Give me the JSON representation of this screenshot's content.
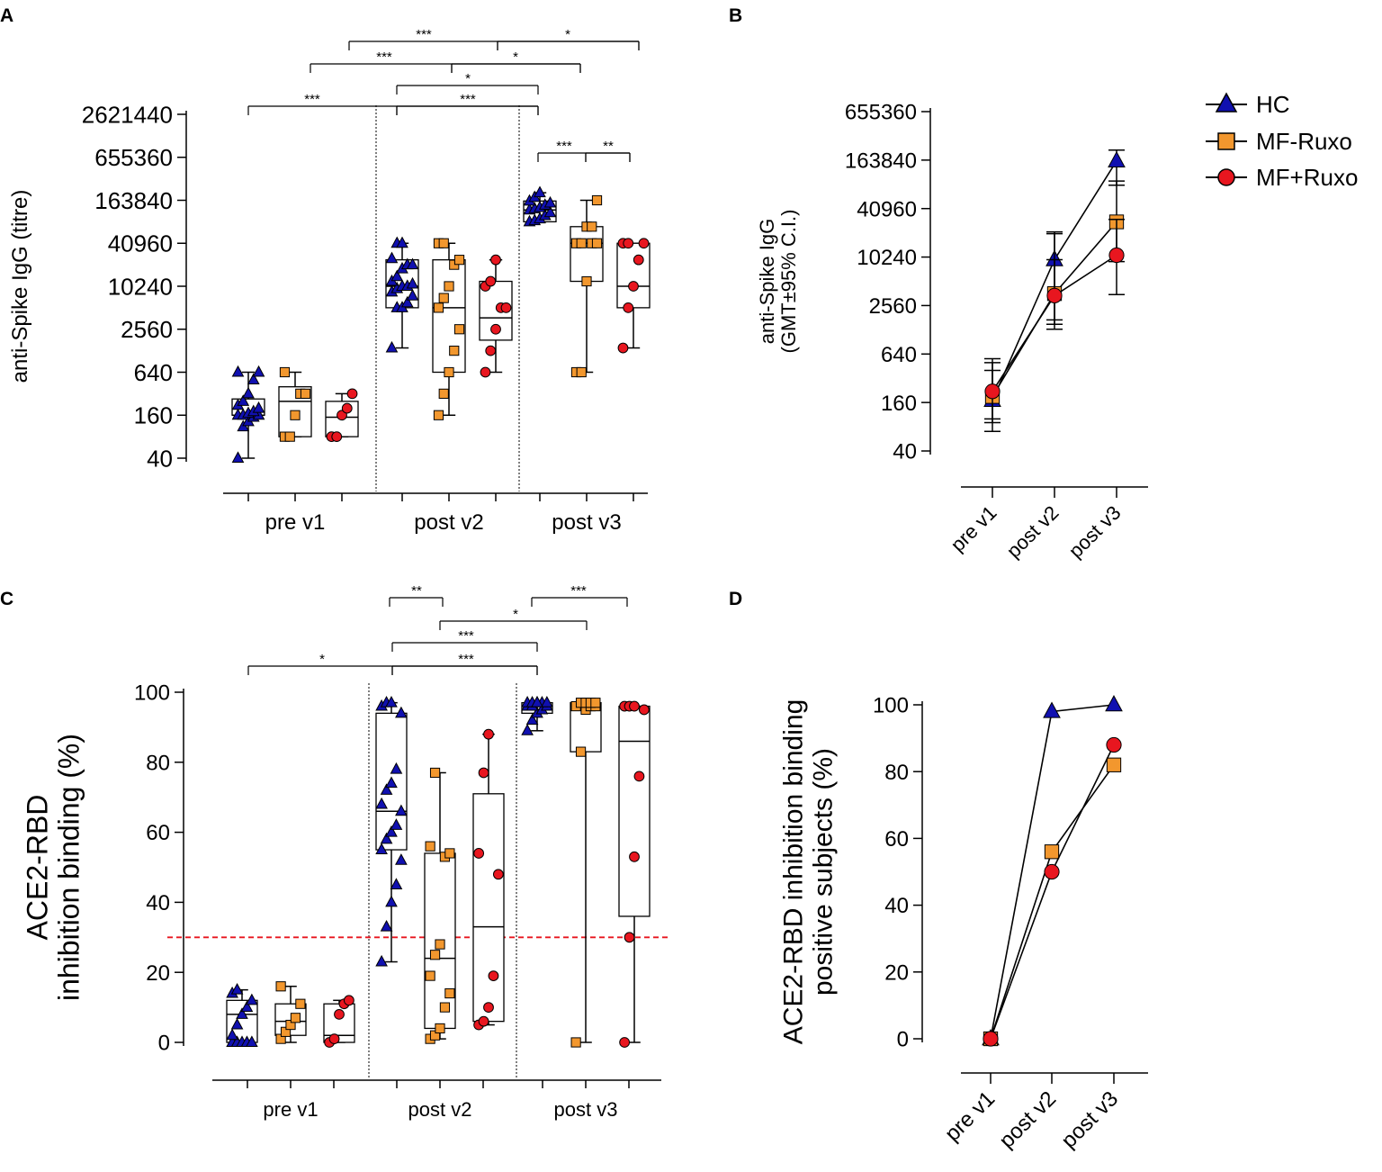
{
  "colors": {
    "hc": "#1010b0",
    "mf_minus": "#f2972e",
    "mf_plus": "#e8161f",
    "threshold": "#e8161f",
    "axis": "#000000"
  },
  "panels": {
    "a": "A",
    "b": "B",
    "c": "C",
    "d": "D"
  },
  "legend": {
    "items": [
      {
        "label": "HC",
        "marker": "triangle",
        "color": "#1010b0"
      },
      {
        "label": "MF-Ruxo",
        "marker": "square",
        "color": "#f2972e"
      },
      {
        "label": "MF+Ruxo",
        "marker": "circle",
        "color": "#e8161f"
      }
    ]
  },
  "chart_data": [
    {
      "id": "A",
      "type": "box",
      "scale": "log",
      "ylabel": "anti-Spike IgG (titre)",
      "ylim": [
        40,
        2621440
      ],
      "yticks": [
        40,
        160,
        640,
        2560,
        10240,
        40960,
        163840,
        655360,
        2621440
      ],
      "ytick_labels": [
        "40",
        "160",
        "640",
        "2560",
        "10240",
        "40960",
        "163840",
        "655360",
        "2621440"
      ],
      "categories": [
        "pre v1",
        "post v2",
        "post v3"
      ],
      "boxes": [
        {
          "cat": 0,
          "group": "HC",
          "whisker": [
            40,
            640
          ],
          "box": [
            160,
            270
          ],
          "median": 160,
          "points": [
            40,
            110,
            130,
            150,
            160,
            160,
            160,
            170,
            180,
            200,
            220,
            250,
            320,
            500,
            640,
            640
          ]
        },
        {
          "cat": 0,
          "group": "MF-Ruxo",
          "whisker": [
            80,
            640
          ],
          "box": [
            80,
            400
          ],
          "median": 250,
          "points": [
            80,
            80,
            160,
            320,
            320,
            640
          ]
        },
        {
          "cat": 0,
          "group": "MF+Ruxo",
          "whisker": [
            80,
            320
          ],
          "box": [
            80,
            250
          ],
          "median": 150,
          "points": [
            80,
            80,
            160,
            200,
            320
          ]
        },
        {
          "cat": 1,
          "group": "HC",
          "whisker": [
            1400,
            40960
          ],
          "box": [
            5120,
            24000
          ],
          "median": 10240,
          "points": [
            1400,
            5120,
            5120,
            6000,
            7500,
            8500,
            9500,
            10240,
            10240,
            11000,
            12000,
            14000,
            18000,
            20480,
            20480,
            25000,
            40960,
            40960
          ]
        },
        {
          "cat": 1,
          "group": "MF-Ruxo",
          "whisker": [
            160,
            40960
          ],
          "box": [
            640,
            24000
          ],
          "median": 5120,
          "points": [
            160,
            320,
            640,
            1280,
            2560,
            5120,
            7000,
            10240,
            20480,
            24000,
            40960,
            40960
          ]
        },
        {
          "cat": 1,
          "group": "MF+Ruxo",
          "whisker": [
            640,
            24000
          ],
          "box": [
            1800,
            12000
          ],
          "median": 3700,
          "points": [
            640,
            1280,
            2560,
            5120,
            5120,
            10240,
            12000,
            24000
          ]
        },
        {
          "cat": 2,
          "group": "HC",
          "whisker": [
            81920,
            209000
          ],
          "box": [
            81920,
            160000
          ],
          "median": 120000,
          "points": [
            81920,
            85000,
            90000,
            100000,
            110000,
            120000,
            125000,
            130000,
            140000,
            150000,
            160000,
            180000,
            209000
          ]
        },
        {
          "cat": 2,
          "group": "MF-Ruxo",
          "whisker": [
            640,
            163840
          ],
          "box": [
            12000,
            70000
          ],
          "median": 40960,
          "points": [
            640,
            640,
            12000,
            40960,
            40960,
            40960,
            40960,
            70000,
            70000,
            163840
          ]
        },
        {
          "cat": 2,
          "group": "MF+Ruxo",
          "whisker": [
            1400,
            40960
          ],
          "box": [
            5120,
            40960
          ],
          "median": 10240,
          "points": [
            1400,
            5120,
            10240,
            24000,
            40960,
            40960,
            40960
          ]
        }
      ],
      "significance": [
        {
          "from": [
            0,
            0
          ],
          "to": [
            1,
            0
          ],
          "label": "***"
        },
        {
          "from": [
            1,
            0
          ],
          "to": [
            2,
            0
          ],
          "label": "***"
        },
        {
          "from": [
            1,
            0
          ],
          "to": [
            2,
            0
          ],
          "label": "*"
        },
        {
          "from": [
            0,
            1
          ],
          "to": [
            1,
            1
          ],
          "label": "***"
        },
        {
          "from": [
            1,
            1
          ],
          "to": [
            2,
            1
          ],
          "label": "*"
        },
        {
          "from": [
            0,
            2
          ],
          "to": [
            1,
            2
          ],
          "label": "***"
        },
        {
          "from": [
            1,
            2
          ],
          "to": [
            2,
            2
          ],
          "label": "*"
        },
        {
          "from": [
            2,
            0
          ],
          "to": [
            2,
            1
          ],
          "label": "***"
        },
        {
          "from": [
            2,
            1
          ],
          "to": [
            2,
            2
          ],
          "label": "**"
        }
      ]
    },
    {
      "id": "B",
      "type": "line",
      "scale": "log",
      "ylabel": [
        "anti-Spike IgG",
        "(GMT±95% C.I.)"
      ],
      "ylim": [
        40,
        655360
      ],
      "yticks": [
        40,
        160,
        640,
        2560,
        10240,
        40960,
        163840,
        655360
      ],
      "ytick_labels": [
        "40",
        "160",
        "640",
        "2560",
        "10240",
        "40960",
        "163840",
        "655360"
      ],
      "categories": [
        "pre v1",
        "post v2",
        "post v3"
      ],
      "series": [
        {
          "name": "HC",
          "values": [
            170,
            9500,
            160000
          ],
          "ci": [
            [
              70,
              500
            ],
            [
              1700,
              21000
            ],
            [
              80000,
              218000
            ]
          ]
        },
        {
          "name": "MF-Ruxo",
          "values": [
            190,
            3600,
            28000
          ],
          "ci": [
            [
              100,
              400
            ],
            [
              1300,
              9500
            ],
            [
              9000,
              90000
            ]
          ]
        },
        {
          "name": "MF+Ruxo",
          "values": [
            220,
            3400,
            10800
          ],
          "ci": [
            [
              90,
              560
            ],
            [
              1500,
              20000
            ],
            [
              3500,
              30000
            ]
          ]
        }
      ]
    },
    {
      "id": "C",
      "type": "box",
      "scale": "linear",
      "ylabel": [
        "ACE2-RBD",
        "inhibition binding (%)"
      ],
      "ylim": [
        0,
        100
      ],
      "yticks": [
        0,
        20,
        40,
        60,
        80,
        100
      ],
      "ytick_labels": [
        "0",
        "20",
        "40",
        "60",
        "80",
        "100"
      ],
      "threshold": 30,
      "categories": [
        "pre v1",
        "post v2",
        "post v3"
      ],
      "boxes": [
        {
          "cat": 0,
          "group": "HC",
          "whisker": [
            0,
            15
          ],
          "box": [
            0,
            12
          ],
          "median": 8,
          "points": [
            0,
            0,
            0,
            0,
            0,
            2,
            5,
            8,
            10,
            12,
            14,
            15
          ]
        },
        {
          "cat": 0,
          "group": "MF-Ruxo",
          "whisker": [
            0,
            16
          ],
          "box": [
            2,
            11
          ],
          "median": 6,
          "points": [
            1,
            3,
            5,
            7,
            11,
            16
          ]
        },
        {
          "cat": 0,
          "group": "MF+Ruxo",
          "whisker": [
            0,
            12
          ],
          "box": [
            0,
            11
          ],
          "median": 2,
          "points": [
            0,
            1,
            8,
            11,
            12
          ]
        },
        {
          "cat": 1,
          "group": "HC",
          "whisker": [
            23,
            97
          ],
          "box": [
            55,
            94
          ],
          "median": 66,
          "points": [
            23,
            33,
            40,
            45,
            52,
            55,
            58,
            60,
            62,
            66,
            68,
            72,
            74,
            78,
            94,
            96,
            97,
            97
          ]
        },
        {
          "cat": 1,
          "group": "MF-Ruxo",
          "whisker": [
            1,
            77
          ],
          "box": [
            4,
            54
          ],
          "median": 24,
          "points": [
            1,
            2,
            4,
            10,
            14,
            19,
            25,
            28,
            53,
            54,
            56,
            77
          ]
        },
        {
          "cat": 1,
          "group": "MF+Ruxo",
          "whisker": [
            5,
            88
          ],
          "box": [
            6,
            71
          ],
          "median": 33,
          "points": [
            5,
            6,
            10,
            19,
            48,
            54,
            77,
            88
          ]
        },
        {
          "cat": 2,
          "group": "HC",
          "whisker": [
            89,
            97
          ],
          "box": [
            94,
            97
          ],
          "median": 96,
          "points": [
            89,
            92,
            94,
            95,
            96,
            96,
            96,
            97,
            97,
            97,
            97,
            97,
            97
          ]
        },
        {
          "cat": 2,
          "group": "MF-Ruxo",
          "whisker": [
            0,
            97
          ],
          "box": [
            83,
            97
          ],
          "median": 96,
          "points": [
            0,
            83,
            95,
            96,
            96,
            96,
            97,
            97,
            97,
            97
          ]
        },
        {
          "cat": 2,
          "group": "MF+Ruxo",
          "whisker": [
            0,
            96
          ],
          "box": [
            36,
            96
          ],
          "median": 86,
          "points": [
            0,
            30,
            53,
            76,
            95,
            96,
            96,
            96
          ]
        }
      ],
      "significance": [
        {
          "from": [
            0,
            0
          ],
          "to": [
            1,
            0
          ],
          "label": "*"
        },
        {
          "from": [
            1,
            0
          ],
          "to": [
            2,
            0
          ],
          "label": "***"
        },
        {
          "from": [
            1,
            0
          ],
          "to": [
            2,
            0
          ],
          "label": "***"
        },
        {
          "from": [
            1,
            0
          ],
          "to": [
            1,
            1
          ],
          "label": "**"
        },
        {
          "from": [
            1,
            1
          ],
          "to": [
            2,
            1
          ],
          "label": "*"
        },
        {
          "from": [
            2,
            0
          ],
          "to": [
            2,
            2
          ],
          "label": "***"
        }
      ]
    },
    {
      "id": "D",
      "type": "line",
      "scale": "linear",
      "ylabel": [
        "ACE2-RBD inhibition binding",
        "positive subjects (%)"
      ],
      "ylim": [
        0,
        100
      ],
      "yticks": [
        0,
        20,
        40,
        60,
        80,
        100
      ],
      "ytick_labels": [
        "0",
        "20",
        "40",
        "60",
        "80",
        "100"
      ],
      "categories": [
        "pre  v1",
        "post v2",
        "post v3"
      ],
      "series": [
        {
          "name": "HC",
          "values": [
            0,
            98,
            100
          ]
        },
        {
          "name": "MF-Ruxo",
          "values": [
            0,
            56,
            82
          ]
        },
        {
          "name": "MF+Ruxo",
          "values": [
            0,
            50,
            88
          ]
        }
      ]
    }
  ]
}
